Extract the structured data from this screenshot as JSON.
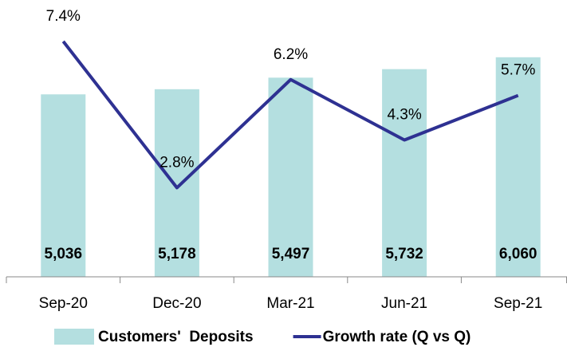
{
  "chart_data": {
    "type": "bar_line",
    "categories": [
      "Sep-20",
      "Dec-20",
      "Mar-21",
      "Jun-21",
      "Sep-21"
    ],
    "series": [
      {
        "name": "Customers'  Deposits",
        "type": "bar",
        "color": "#b4dfe0",
        "values": [
          5036,
          5178,
          5497,
          5732,
          6060
        ],
        "value_labels": [
          "5,036",
          "5,178",
          "5,497",
          "5,732",
          "6,060"
        ]
      },
      {
        "name": "Growth rate (Q vs Q)",
        "type": "line",
        "axis": "y2",
        "color": "#2e3192",
        "values": [
          7.4,
          2.8,
          6.2,
          4.3,
          5.7
        ],
        "value_labels": [
          "7.4%",
          "2.8%",
          "6.2%",
          "4.3%",
          "5.7%"
        ]
      }
    ],
    "ylim": [
      0,
      7200
    ],
    "y2lim": [
      0,
      8.2
    ],
    "grid": false,
    "legend": "bottom"
  }
}
